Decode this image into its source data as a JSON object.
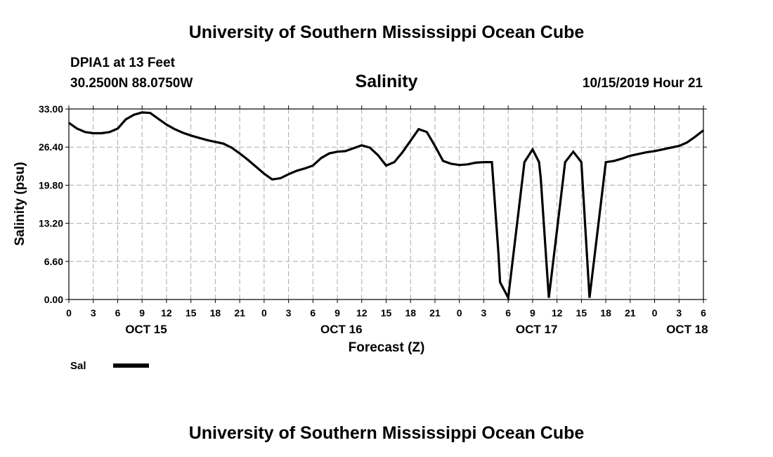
{
  "header": {
    "title": "University of Southern Mississippi Ocean Cube",
    "station": "DPIA1 at 13 Feet",
    "coords": "30.2500N 88.0750W",
    "timestamp": "10/15/2019 Hour 21"
  },
  "footer": {
    "title": "University of Southern Mississippi Ocean Cube"
  },
  "legend": {
    "label": "Sal"
  },
  "colors": {
    "line": "#000000",
    "grid": "#aaaaaa"
  },
  "chart_data": {
    "type": "line",
    "title": "Salinity",
    "xlabel": "Forecast (Z)",
    "ylabel": "Salinity (psu)",
    "x_unit": "hours since 10/15 00Z",
    "xlim": [
      0,
      78
    ],
    "ylim": [
      0,
      33
    ],
    "grid": true,
    "legend_position": "bottom-left",
    "y_ticks": [
      "0.00",
      "6.60",
      "13.20",
      "19.80",
      "26.40",
      "33.00"
    ],
    "x_tick_hours": [
      0,
      3,
      6,
      9,
      12,
      15,
      18,
      21,
      24,
      27,
      30,
      33,
      36,
      39,
      42,
      45,
      48,
      51,
      54,
      57,
      60,
      63,
      66,
      69,
      72,
      75,
      78
    ],
    "x_tick_labels": [
      "0",
      "3",
      "6",
      "9",
      "12",
      "15",
      "18",
      "21",
      "0",
      "3",
      "6",
      "9",
      "12",
      "15",
      "18",
      "21",
      "0",
      "3",
      "6",
      "9",
      "12",
      "15",
      "18",
      "21",
      "0",
      "3",
      "6"
    ],
    "date_labels": [
      {
        "hour": 9.5,
        "label": "OCT 15"
      },
      {
        "hour": 33.5,
        "label": "OCT 16"
      },
      {
        "hour": 57.5,
        "label": "OCT 17"
      },
      {
        "hour": 76,
        "label": "OCT 18"
      }
    ],
    "series": [
      {
        "name": "Sal",
        "x": [
          0,
          1,
          2,
          3,
          4,
          5,
          6,
          7,
          8,
          9,
          10,
          11,
          12,
          13,
          14,
          15,
          16,
          17,
          18,
          19,
          20,
          21,
          22,
          23,
          24,
          25,
          26,
          27,
          28,
          29,
          30,
          31,
          32,
          33,
          34,
          35,
          36,
          37,
          38,
          39,
          40,
          41,
          42,
          43,
          44,
          45,
          46,
          47,
          48,
          49,
          50,
          51,
          52,
          52.8,
          53,
          54,
          55,
          56,
          57,
          57.8,
          58,
          59,
          60,
          61,
          62,
          63,
          64,
          65,
          66,
          67,
          68,
          69,
          70,
          71,
          72,
          73,
          74,
          75,
          76,
          77,
          78
        ],
        "y": [
          30.6,
          29.6,
          29.0,
          28.8,
          28.8,
          29.0,
          29.6,
          31.2,
          32.0,
          32.4,
          32.3,
          31.3,
          30.3,
          29.5,
          28.9,
          28.4,
          28.0,
          27.6,
          27.3,
          27.0,
          26.3,
          25.3,
          24.2,
          23.0,
          21.8,
          20.8,
          21.0,
          21.7,
          22.3,
          22.7,
          23.2,
          24.5,
          25.3,
          25.6,
          25.7,
          26.2,
          26.7,
          26.3,
          25.0,
          23.2,
          23.8,
          25.5,
          27.5,
          29.5,
          29.0,
          26.6,
          24.0,
          23.5,
          23.3,
          23.4,
          23.7,
          23.8,
          23.8,
          8.0,
          3.0,
          0.3,
          12.0,
          23.8,
          26.0,
          23.8,
          21.0,
          0.3,
          12.0,
          23.8,
          25.6,
          23.8,
          0.3,
          12.0,
          23.8,
          24.0,
          24.4,
          24.9,
          25.2,
          25.5,
          25.7,
          26.0,
          26.3,
          26.6,
          27.2,
          28.2,
          29.3
        ]
      }
    ]
  }
}
